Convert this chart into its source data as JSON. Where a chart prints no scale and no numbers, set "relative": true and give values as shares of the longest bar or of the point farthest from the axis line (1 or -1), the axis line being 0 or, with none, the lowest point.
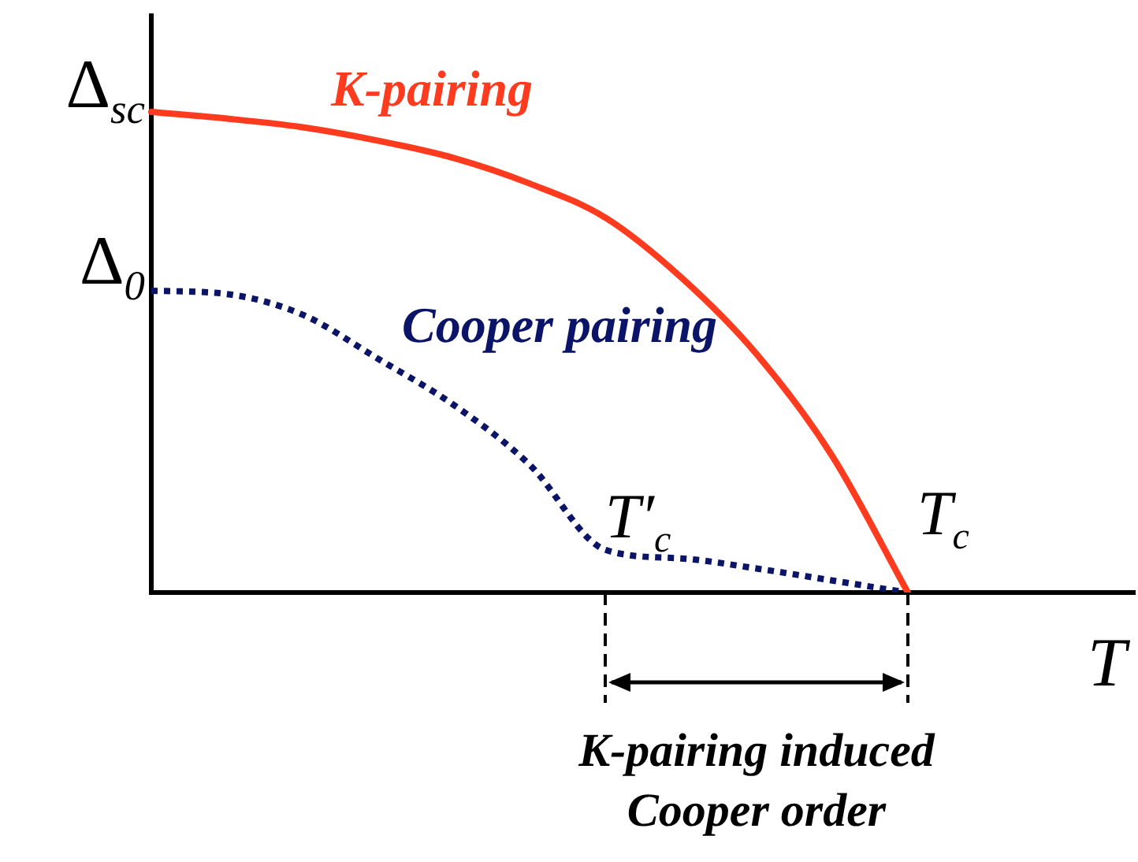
{
  "chart_data": {
    "type": "line",
    "relative": true,
    "xlabel": "T",
    "categories": [
      null,
      null,
      null,
      null,
      null,
      null,
      null,
      null,
      null,
      null,
      null,
      null,
      null,
      null
    ],
    "series": [
      {
        "name": "K-pairing",
        "color": "#ff3b1f",
        "line_style": "solid",
        "values": [
          1,
          0.986,
          0.968,
          0.94,
          0.904,
          0.851,
          0.78,
          0.656,
          0.496,
          0.284,
          0,
          null,
          null,
          null
        ]
      },
      {
        "name": "Cooper pairing",
        "color": "#0b1466",
        "line_style": "dotted",
        "values": [
          0.628,
          0.621,
          0.578,
          0.486,
          0.39,
          0.266,
          0.089,
          0.071,
          0.05,
          0.025,
          0,
          null,
          null,
          null
        ]
      }
    ],
    "annotations": [
      "Δ$_{sc}$",
      "Δ$_{0}$",
      "T′$_{c}$",
      "T$_{c}$",
      "K-pairing induced Cooper order"
    ],
    "marker": "none",
    "legend": false,
    "grid": false
  }
}
